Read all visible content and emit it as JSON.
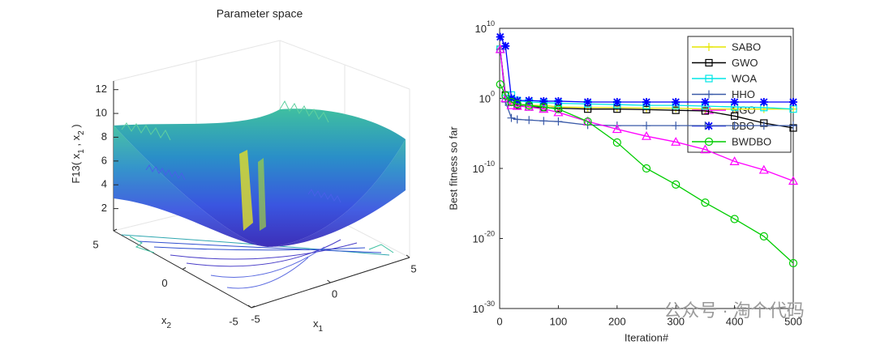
{
  "chart_data": [
    {
      "type": "surface",
      "title": "Parameter space",
      "zlabel": [
        "F13( x",
        "1",
        " , x",
        "2",
        " )"
      ],
      "xlabel": [
        "x",
        "1"
      ],
      "ylabel": [
        "x",
        "2"
      ],
      "xlim": [
        -5,
        5
      ],
      "ylim": [
        -5,
        5
      ],
      "zlim": [
        0,
        13
      ],
      "xticks": [
        -5,
        0,
        5
      ],
      "yticks": [
        -5,
        0,
        5
      ],
      "zticks": [
        2,
        4,
        6,
        8,
        10,
        12
      ]
    },
    {
      "type": "line",
      "ylabel": "Best fitness so far",
      "xlabel": "Iteration#",
      "log_y": true,
      "legend": "upper right",
      "x": [
        1,
        10,
        20,
        30,
        50,
        75,
        100,
        150,
        200,
        250,
        300,
        350,
        400,
        450,
        500
      ],
      "xlim": [
        0,
        500
      ],
      "xticks": [
        0,
        100,
        200,
        300,
        400,
        500
      ],
      "ylim": [
        1e-30,
        10000000000.0
      ],
      "yticks": [
        {
          "value": 1e-30,
          "label": "10",
          "exponent": "-30"
        },
        {
          "value": 1e-20,
          "label": "10",
          "exponent": "-20"
        },
        {
          "value": 1e-10,
          "label": "10",
          "exponent": "-10"
        },
        {
          "value": 1,
          "label": "10",
          "exponent": "0"
        },
        {
          "value": 10000000000.0,
          "label": "10",
          "exponent": "10"
        }
      ],
      "series": [
        {
          "name": "SABO",
          "color": "#e6e600",
          "marker": "plus",
          "values": [
            10000000.0,
            1,
            0.3,
            0.16,
            0.1,
            0.1,
            0.06,
            0.05,
            0.05,
            0.04,
            0.04,
            0.03,
            0.03,
            0.03,
            0.03
          ]
        },
        {
          "name": "GWO",
          "color": "#000000",
          "marker": "square",
          "values": [
            10000000.0,
            3,
            0.3,
            0.1,
            0.06,
            0.05,
            0.04,
            0.03,
            0.03,
            0.025,
            0.02,
            0.016,
            0.003,
            0.0003,
            6e-05
          ]
        },
        {
          "name": "WOA",
          "color": "#00e6e6",
          "marker": "square",
          "values": [
            10000000.0,
            1,
            3,
            0.5,
            0.3,
            0.25,
            0.2,
            0.16,
            0.13,
            0.1,
            0.1,
            0.08,
            0.06,
            0.05,
            0.03
          ]
        },
        {
          "name": "HHO",
          "color": "#3a5aa8",
          "marker": "plus",
          "values": [
            10000000.0,
            0.3,
            0.0016,
            0.001,
            0.0008,
            0.0006,
            0.0005,
            0.00016,
            0.00013,
            0.00013,
            0.00013,
            0.00013,
            0.00013,
            0.00013,
            0.00013
          ]
        },
        {
          "name": "NGO",
          "color": "#ff00ff",
          "marker": "triangle",
          "values": [
            10000000.0,
            1,
            0.1,
            0.08,
            0.06,
            0.03,
            0.01,
            0.0005,
            4e-05,
            4e-06,
            6e-07,
            5e-08,
            1e-09,
            6e-11,
            1.6e-12
          ]
        },
        {
          "name": "DBO",
          "color": "#0000ff",
          "marker": "star",
          "values": [
            600000000.0,
            30000000.0,
            1,
            0.5,
            0.5,
            0.4,
            0.4,
            0.3,
            0.3,
            0.3,
            0.3,
            0.3,
            0.3,
            0.3,
            0.3
          ]
        },
        {
          "name": "BWDBO",
          "color": "#00cc00",
          "marker": "circle",
          "values": [
            100,
            2.5,
            0.3,
            0.16,
            0.1,
            0.06,
            0.03,
            0.0005,
            5e-07,
            1e-10,
            5e-13,
            1.3e-15,
            6e-18,
            2e-20,
            3e-24
          ]
        }
      ]
    },
    {
      "watermark": "公众号 · 淘个代码"
    }
  ]
}
